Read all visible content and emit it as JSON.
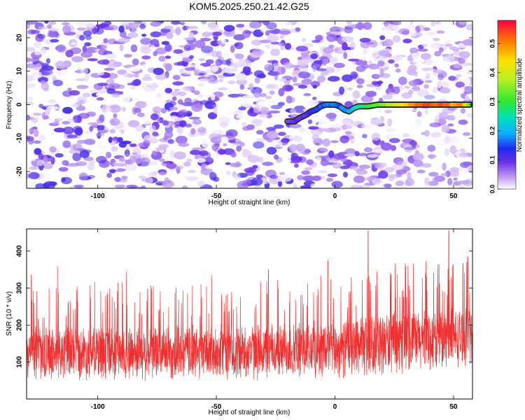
{
  "title": "KOM5.2025.250.21.42.G25",
  "colors": {
    "background": "#ffffff",
    "snr_line": "#f03030",
    "spectrogram_base": "#7b3fe4",
    "track_outline": "#2a2a2a"
  },
  "chart_data": [
    {
      "type": "heatmap",
      "name": "spectrogram",
      "xlabel": "Height of straight line (km)",
      "ylabel": "Frequency (Hz)",
      "xlim": [
        -130,
        58
      ],
      "ylim": [
        -25,
        25
      ],
      "x_ticks": [
        -100,
        -50,
        0,
        50
      ],
      "y_ticks": [
        -20,
        -10,
        0,
        10,
        20
      ],
      "x_tick_labels": [
        "-100",
        "-50",
        "0",
        "50"
      ],
      "y_tick_labels": [
        "-20",
        "-10",
        "0",
        "10",
        "20"
      ],
      "colorbar": {
        "label": "Normalized spectral amplitude",
        "range": [
          0.0,
          0.58
        ],
        "ticks": [
          0.0,
          0.1,
          0.2,
          0.3,
          0.4,
          0.5
        ],
        "tick_labels": [
          "0.0",
          "0.1",
          "0.2",
          "0.3",
          "0.4",
          "0.5"
        ]
      },
      "background_noise_amplitude": [
        0.0,
        0.12
      ],
      "signal_track": [
        {
          "x": -20,
          "y": -5,
          "amp": 0.09
        },
        {
          "x": -17,
          "y": -5,
          "amp": 0.1
        },
        {
          "x": -15,
          "y": -4,
          "amp": 0.1
        },
        {
          "x": -12,
          "y": -3,
          "amp": 0.1
        },
        {
          "x": -10,
          "y": -2,
          "amp": 0.12
        },
        {
          "x": -8,
          "y": -1.5,
          "amp": 0.14
        },
        {
          "x": -6,
          "y": -0.5,
          "amp": 0.15
        },
        {
          "x": -4,
          "y": 0,
          "amp": 0.16
        },
        {
          "x": -2,
          "y": 0,
          "amp": 0.17
        },
        {
          "x": 0,
          "y": 0,
          "amp": 0.17
        },
        {
          "x": 2,
          "y": -0.5,
          "amp": 0.16
        },
        {
          "x": 4,
          "y": -1.5,
          "amp": 0.17
        },
        {
          "x": 6,
          "y": -2,
          "amp": 0.18
        },
        {
          "x": 8,
          "y": -1,
          "amp": 0.22
        },
        {
          "x": 10,
          "y": -0.5,
          "amp": 0.26
        },
        {
          "x": 14,
          "y": -0.5,
          "amp": 0.3
        },
        {
          "x": 18,
          "y": 0,
          "amp": 0.32
        },
        {
          "x": 22,
          "y": 0,
          "amp": 0.36
        },
        {
          "x": 26,
          "y": 0,
          "amp": 0.4
        },
        {
          "x": 30,
          "y": 0,
          "amp": 0.44
        },
        {
          "x": 34,
          "y": 0,
          "amp": 0.5
        },
        {
          "x": 38,
          "y": 0,
          "amp": 0.55
        },
        {
          "x": 42,
          "y": 0,
          "amp": 0.52
        },
        {
          "x": 46,
          "y": 0,
          "amp": 0.54
        },
        {
          "x": 50,
          "y": 0,
          "amp": 0.47
        },
        {
          "x": 54,
          "y": 0,
          "amp": 0.5
        },
        {
          "x": 57,
          "y": 0,
          "amp": 0.3
        }
      ]
    },
    {
      "type": "line",
      "name": "snr",
      "xlabel": "Height of straight line (km)",
      "ylabel": "SNR (10 * v/v)",
      "xlim": [
        -130,
        58
      ],
      "ylim": [
        0,
        460
      ],
      "x_ticks": [
        -100,
        -50,
        0,
        50
      ],
      "y_ticks": [
        100,
        200,
        300,
        400
      ],
      "x_tick_labels": [
        "-100",
        "-50",
        "0",
        "50"
      ],
      "y_tick_labels": [
        "100",
        "200",
        "300",
        "400"
      ],
      "envelope": [
        {
          "x": -130,
          "mean": 125,
          "spread": 75
        },
        {
          "x": -100,
          "mean": 125,
          "spread": 80
        },
        {
          "x": -50,
          "mean": 125,
          "spread": 80
        },
        {
          "x": 0,
          "mean": 135,
          "spread": 85
        },
        {
          "x": 20,
          "mean": 150,
          "spread": 90
        },
        {
          "x": 40,
          "mean": 160,
          "spread": 90
        },
        {
          "x": 58,
          "mean": 170,
          "spread": 85
        }
      ],
      "peaks": [
        {
          "x": -128,
          "y": 335
        },
        {
          "x": -117,
          "y": 360
        },
        {
          "x": -88,
          "y": 345
        },
        {
          "x": -52,
          "y": 335
        },
        {
          "x": -28,
          "y": 350
        },
        {
          "x": -3,
          "y": 375
        },
        {
          "x": 14,
          "y": 455
        },
        {
          "x": 48,
          "y": 455
        },
        {
          "x": 56,
          "y": 385
        }
      ],
      "samples": 2400
    }
  ]
}
